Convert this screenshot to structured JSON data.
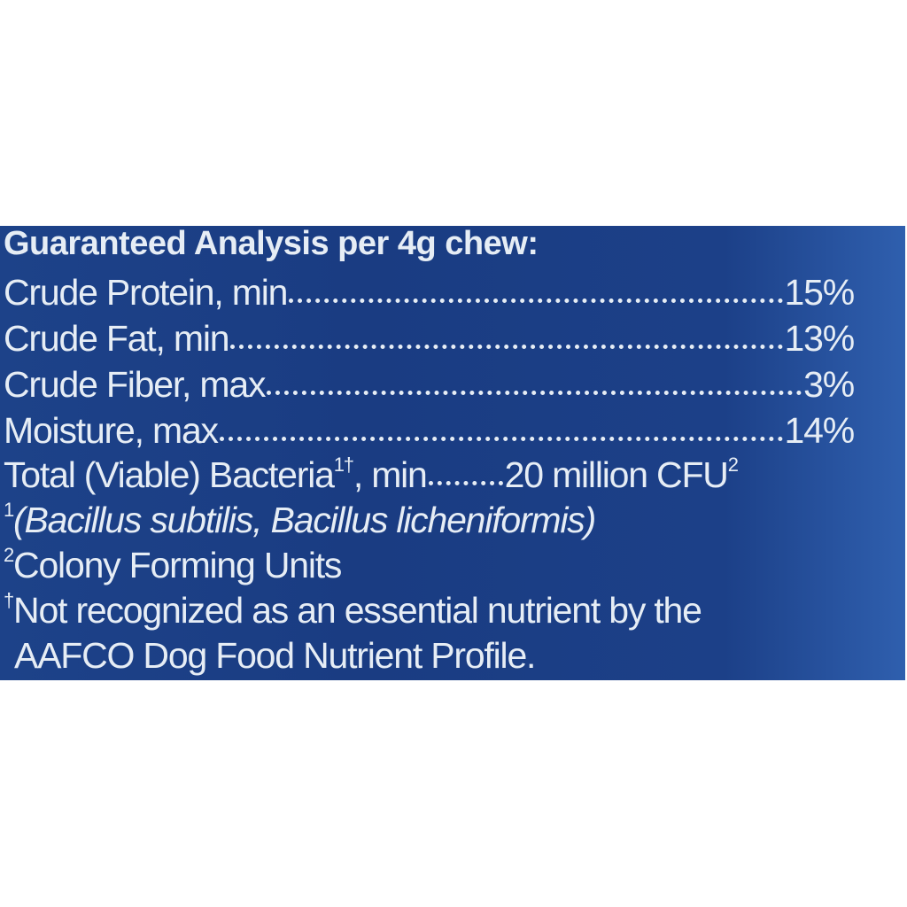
{
  "heading": "Guaranteed Analysis per 4g chew:",
  "rows": [
    {
      "label": "Crude Protein, min",
      "value": "15%"
    },
    {
      "label": "Crude Fat, min",
      "value": "13%"
    },
    {
      "label": "Crude Fiber, max",
      "value": "3%"
    },
    {
      "label": "Moisture, max",
      "value": "14%"
    }
  ],
  "bacteria": {
    "label": "Total (Viable) Bacteria",
    "label_marks": "1†",
    "label_suffix": ", min",
    "value": "20 million CFU",
    "value_mark": "2"
  },
  "footnotes": {
    "f1_mark": "1",
    "f1_text": "(Bacillus subtilis, Bacillus licheniformis)",
    "f2_mark": "2",
    "f2_text": "Colony Forming Units",
    "f3_mark": "†",
    "f3_text": "Not recognized as an essential nutrient by the",
    "f3_text_cont": "AAFCO Dog Food Nutrient Profile."
  },
  "colors": {
    "panel": "#1d4289",
    "text": "#e6edf5"
  }
}
